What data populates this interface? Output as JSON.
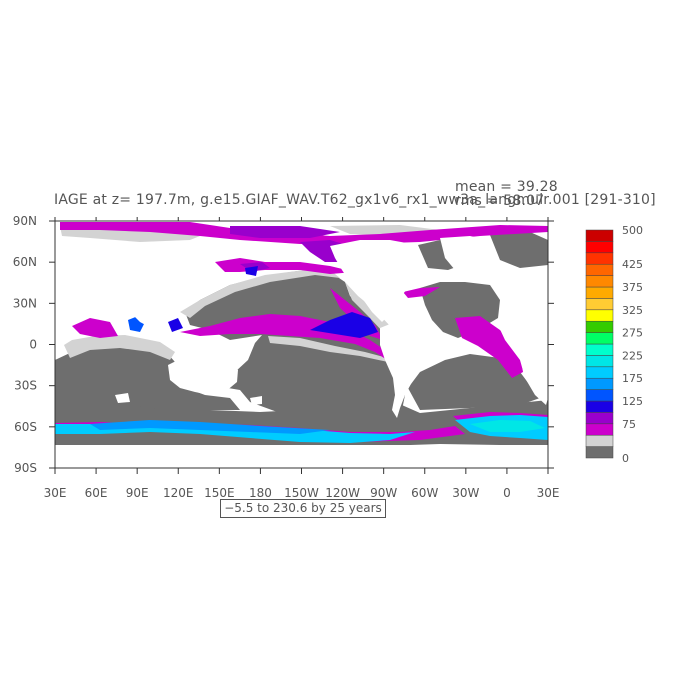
{
  "header": {
    "title": "IAGE at z= 197.7m, g.e15.GIAF_WAV.T62_gx1v6_rx1_ww3a_langmuir.001 [291-310]",
    "mean": "mean = 39.28",
    "rms": "rms = 58.07"
  },
  "map": {
    "lon_ticks": [
      "30E",
      "60E",
      "90E",
      "120E",
      "150E",
      "180",
      "150W",
      "120W",
      "90W",
      "60W",
      "30W",
      "0",
      "30E"
    ],
    "lat_ticks": [
      "90N",
      "60N",
      "30N",
      "0",
      "30S",
      "60S",
      "90S"
    ],
    "range_note": "−5.5 to 230.6 by 25 years",
    "land_color": "#ffffff"
  },
  "colorbar": {
    "colors": [
      "#6e6e6e",
      "#d3d3d3",
      "#cc00cc",
      "#9900cc",
      "#1a00e6",
      "#0055ff",
      "#0099ff",
      "#00ccff",
      "#00e6e6",
      "#00ffcc",
      "#00ff66",
      "#33cc00",
      "#ffff00",
      "#ffcc33",
      "#ffaa00",
      "#ff8800",
      "#ff6600",
      "#ff3300",
      "#ff0000",
      "#cc0000"
    ],
    "labels": [
      "0",
      "75",
      "125",
      "175",
      "225",
      "275",
      "325",
      "375",
      "425",
      "500"
    ]
  }
}
